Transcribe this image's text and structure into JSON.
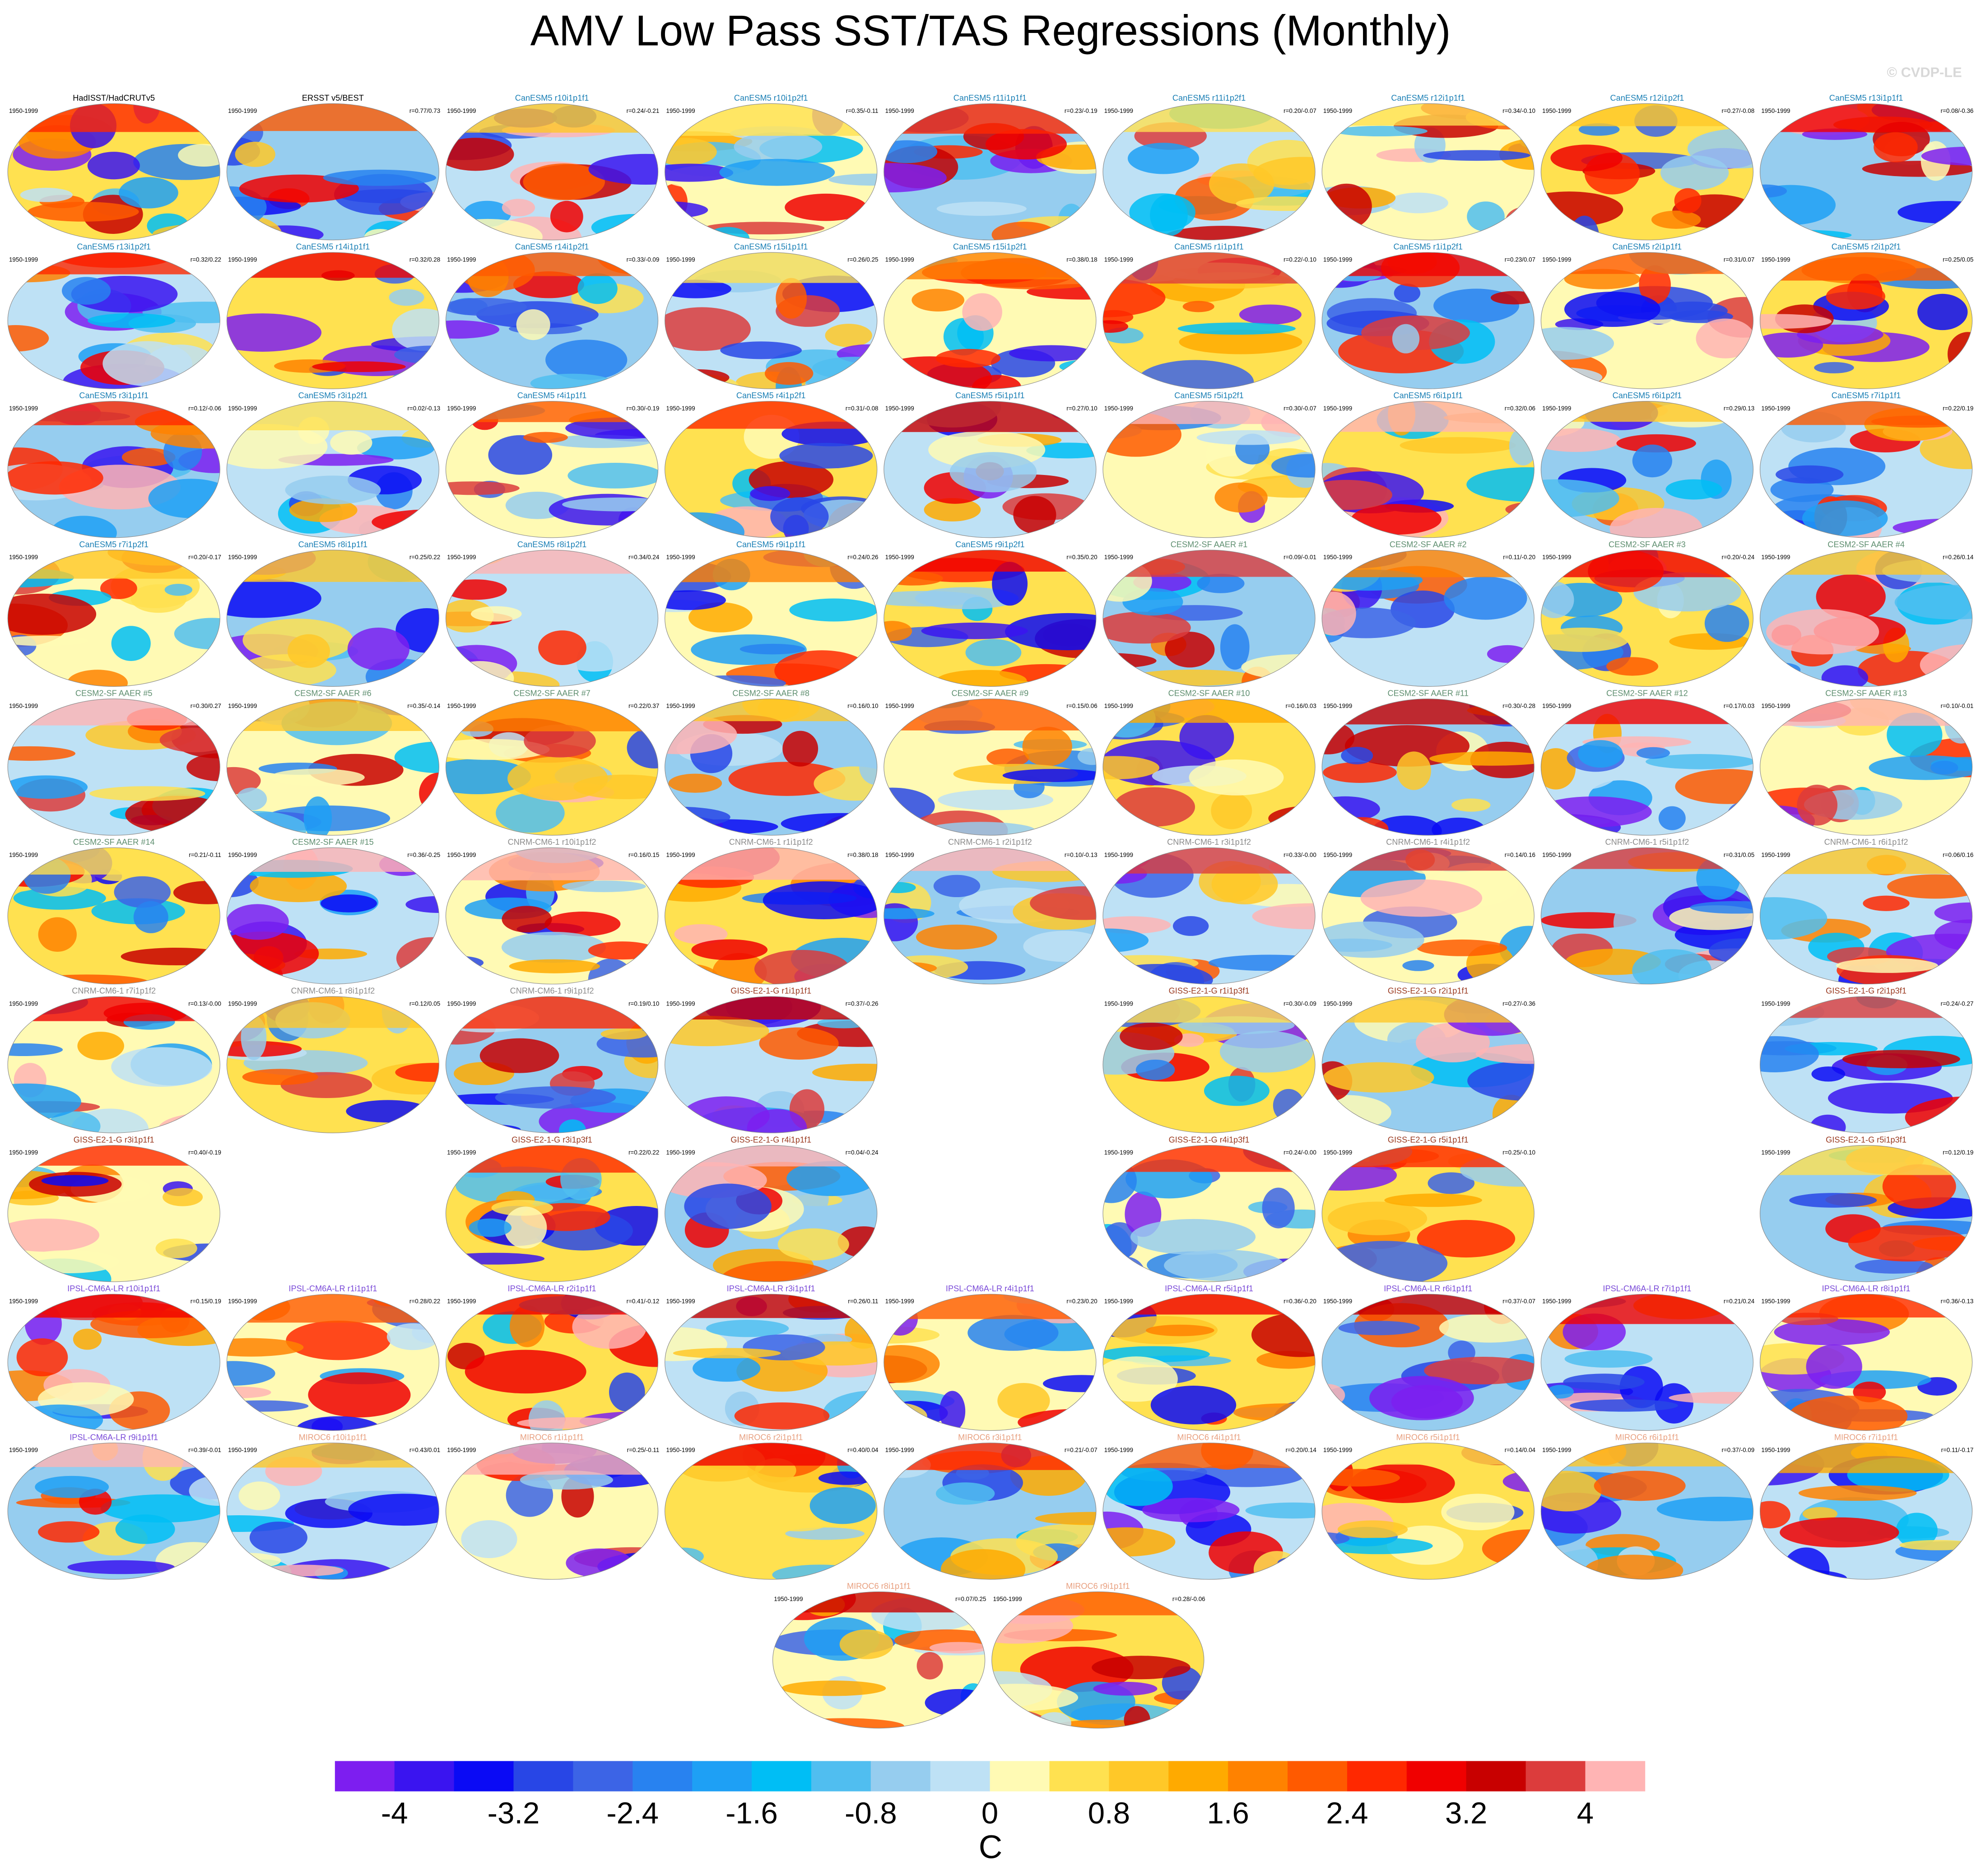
{
  "title": "AMV Low Pass SST/TAS Regressions (Monthly)",
  "credit": "© CVDP-LE",
  "panels": [
    [
      {
        "title": "HadISST/HadCRUTv5",
        "period": "1950-1999",
        "color": "#000000"
      },
      {
        "title": "ERSST v5/BEST",
        "period": "1950-1999",
        "r": "r=0.77/0.73",
        "color": "#000000"
      },
      {
        "title": "CanESM5 r10i1p1f1",
        "period": "1950-1999",
        "r": "r=0.24/-0.21",
        "color": "#1a7fb5"
      },
      {
        "title": "CanESM5 r10i1p2f1",
        "period": "1950-1999",
        "r": "r=0.35/-0.11",
        "color": "#1a7fb5"
      },
      {
        "title": "CanESM5 r11i1p1f1",
        "period": "1950-1999",
        "r": "r=0.23/-0.19",
        "color": "#1a7fb5"
      },
      {
        "title": "CanESM5 r11i1p2f1",
        "period": "1950-1999",
        "r": "r=0.20/-0.07",
        "color": "#1a7fb5"
      },
      {
        "title": "CanESM5 r12i1p1f1",
        "period": "1950-1999",
        "r": "r=0.34/-0.10",
        "color": "#1a7fb5"
      },
      {
        "title": "CanESM5 r12i1p2f1",
        "period": "1950-1999",
        "r": "r=0.27/-0.08",
        "color": "#1a7fb5"
      },
      {
        "title": "CanESM5 r13i1p1f1",
        "period": "1950-1999",
        "r": "r=0.08/-0.36",
        "color": "#1a7fb5"
      }
    ],
    [
      {
        "title": "CanESM5 r13i1p2f1",
        "period": "1950-1999",
        "r": "r=0.32/0.22",
        "color": "#1a7fb5"
      },
      {
        "title": "CanESM5 r14i1p1f1",
        "period": "1950-1999",
        "r": "r=0.32/0.28",
        "color": "#1a7fb5"
      },
      {
        "title": "CanESM5 r14i1p2f1",
        "period": "1950-1999",
        "r": "r=0.33/-0.09",
        "color": "#1a7fb5"
      },
      {
        "title": "CanESM5 r15i1p1f1",
        "period": "1950-1999",
        "r": "r=0.26/0.25",
        "color": "#1a7fb5"
      },
      {
        "title": "CanESM5 r15i1p2f1",
        "period": "1950-1999",
        "r": "r=0.38/0.18",
        "color": "#1a7fb5"
      },
      {
        "title": "CanESM5 r1i1p1f1",
        "period": "1950-1999",
        "r": "r=0.22/-0.10",
        "color": "#1a7fb5"
      },
      {
        "title": "CanESM5 r1i1p2f1",
        "period": "1950-1999",
        "r": "r=0.23/0.07",
        "color": "#1a7fb5"
      },
      {
        "title": "CanESM5 r2i1p1f1",
        "period": "1950-1999",
        "r": "r=0.31/0.07",
        "color": "#1a7fb5"
      },
      {
        "title": "CanESM5 r2i1p2f1",
        "period": "1950-1999",
        "r": "r=0.25/0.05",
        "color": "#1a7fb5"
      }
    ],
    [
      {
        "title": "CanESM5 r3i1p1f1",
        "period": "1950-1999",
        "r": "r=0.12/-0.06",
        "color": "#1a7fb5"
      },
      {
        "title": "CanESM5 r3i1p2f1",
        "period": "1950-1999",
        "r": "r=0.02/-0.13",
        "color": "#1a7fb5"
      },
      {
        "title": "CanESM5 r4i1p1f1",
        "period": "1950-1999",
        "r": "r=0.30/-0.19",
        "color": "#1a7fb5"
      },
      {
        "title": "CanESM5 r4i1p2f1",
        "period": "1950-1999",
        "r": "r=0.31/-0.08",
        "color": "#1a7fb5"
      },
      {
        "title": "CanESM5 r5i1p1f1",
        "period": "1950-1999",
        "r": "r=0.27/0.10",
        "color": "#1a7fb5"
      },
      {
        "title": "CanESM5 r5i1p2f1",
        "period": "1950-1999",
        "r": "r=0.30/-0.07",
        "color": "#1a7fb5"
      },
      {
        "title": "CanESM5 r6i1p1f1",
        "period": "1950-1999",
        "r": "r=0.32/0.06",
        "color": "#1a7fb5"
      },
      {
        "title": "CanESM5 r6i1p2f1",
        "period": "1950-1999",
        "r": "r=0.29/0.13",
        "color": "#1a7fb5"
      },
      {
        "title": "CanESM5 r7i1p1f1",
        "period": "1950-1999",
        "r": "r=0.22/0.19",
        "color": "#1a7fb5"
      }
    ],
    [
      {
        "title": "CanESM5 r7i1p2f1",
        "period": "1950-1999",
        "r": "r=0.20/-0.17",
        "color": "#1a7fb5"
      },
      {
        "title": "CanESM5 r8i1p1f1",
        "period": "1950-1999",
        "r": "r=0.25/0.22",
        "color": "#1a7fb5"
      },
      {
        "title": "CanESM5 r8i1p2f1",
        "period": "1950-1999",
        "r": "r=0.34/0.24",
        "color": "#1a7fb5"
      },
      {
        "title": "CanESM5 r9i1p1f1",
        "period": "1950-1999",
        "r": "r=0.24/0.26",
        "color": "#1a7fb5"
      },
      {
        "title": "CanESM5 r9i1p2f1",
        "period": "1950-1999",
        "r": "r=0.35/0.20",
        "color": "#1a7fb5"
      },
      {
        "title": "CESM2-SF AAER #1",
        "period": "1950-1999",
        "r": "r=0.09/-0.01",
        "color": "#5f8f70"
      },
      {
        "title": "CESM2-SF AAER #2",
        "period": "1950-1999",
        "r": "r=0.11/-0.20",
        "color": "#5f8f70"
      },
      {
        "title": "CESM2-SF AAER #3",
        "period": "1950-1999",
        "r": "r=0.20/-0.24",
        "color": "#5f8f70"
      },
      {
        "title": "CESM2-SF AAER #4",
        "period": "1950-1999",
        "r": "r=0.26/0.14",
        "color": "#5f8f70"
      }
    ],
    [
      {
        "title": "CESM2-SF AAER #5",
        "period": "1950-1999",
        "r": "r=0.30/0.27",
        "color": "#5f8f70"
      },
      {
        "title": "CESM2-SF AAER #6",
        "period": "1950-1999",
        "r": "r=0.35/-0.14",
        "color": "#5f8f70"
      },
      {
        "title": "CESM2-SF AAER #7",
        "period": "1950-1999",
        "r": "r=0.22/0.37",
        "color": "#5f8f70"
      },
      {
        "title": "CESM2-SF AAER #8",
        "period": "1950-1999",
        "r": "r=0.16/0.10",
        "color": "#5f8f70"
      },
      {
        "title": "CESM2-SF AAER #9",
        "period": "1950-1999",
        "r": "r=0.15/0.06",
        "color": "#5f8f70"
      },
      {
        "title": "CESM2-SF AAER #10",
        "period": "1950-1999",
        "r": "r=0.16/0.03",
        "color": "#5f8f70"
      },
      {
        "title": "CESM2-SF AAER #11",
        "period": "1950-1999",
        "r": "r=0.30/-0.28",
        "color": "#5f8f70"
      },
      {
        "title": "CESM2-SF AAER #12",
        "period": "1950-1999",
        "r": "r=0.17/0.03",
        "color": "#5f8f70"
      },
      {
        "title": "CESM2-SF AAER #13",
        "period": "1950-1999",
        "r": "r=0.10/-0.01",
        "color": "#5f8f70"
      }
    ],
    [
      {
        "title": "CESM2-SF AAER #14",
        "period": "1950-1999",
        "r": "r=0.21/-0.11",
        "color": "#5f8f70"
      },
      {
        "title": "CESM2-SF AAER #15",
        "period": "1950-1999",
        "r": "r=0.36/-0.25",
        "color": "#5f8f70"
      },
      {
        "title": "CNRM-CM6-1 r10i1p1f2",
        "period": "1950-1999",
        "r": "r=0.16/0.15",
        "color": "#8c8c8c"
      },
      {
        "title": "CNRM-CM6-1 r1i1p1f2",
        "period": "1950-1999",
        "r": "r=0.38/0.18",
        "color": "#8c8c8c"
      },
      {
        "title": "CNRM-CM6-1 r2i1p1f2",
        "period": "1950-1999",
        "r": "r=0.10/-0.13",
        "color": "#8c8c8c"
      },
      {
        "title": "CNRM-CM6-1 r3i1p1f2",
        "period": "1950-1999",
        "r": "r=0.33/-0.00",
        "color": "#8c8c8c"
      },
      {
        "title": "CNRM-CM6-1 r4i1p1f2",
        "period": "1950-1999",
        "r": "r=0.14/0.16",
        "color": "#8c8c8c"
      },
      {
        "title": "CNRM-CM6-1 r5i1p1f2",
        "period": "1950-1999",
        "r": "r=0.31/0.05",
        "color": "#8c8c8c"
      },
      {
        "title": "CNRM-CM6-1 r6i1p1f2",
        "period": "1950-1999",
        "r": "r=0.06/0.16",
        "color": "#8c8c8c"
      }
    ],
    [
      {
        "title": "CNRM-CM6-1 r7i1p1f2",
        "period": "1950-1999",
        "r": "r=0.13/-0.00",
        "color": "#8c8c8c"
      },
      {
        "title": "CNRM-CM6-1 r8i1p1f2",
        "period": "1950-1999",
        "r": "r=0.12/0.05",
        "color": "#8c8c8c"
      },
      {
        "title": "CNRM-CM6-1 r9i1p1f2",
        "period": "1950-1999",
        "r": "r=0.19/0.10",
        "color": "#8c8c8c"
      },
      {
        "title": "GISS-E2-1-G r1i1p1f1",
        "period": "1950-1999",
        "r": "r=0.37/-0.26",
        "color": "#9a3a20"
      },
      null,
      {
        "title": "GISS-E2-1-G r1i1p3f1",
        "period": "1950-1999",
        "r": "r=0.30/-0.09",
        "color": "#9a3a20"
      },
      {
        "title": "GISS-E2-1-G r2i1p1f1",
        "period": "1950-1999",
        "r": "r=0.27/-0.36",
        "color": "#9a3a20"
      },
      null,
      {
        "title": "GISS-E2-1-G r2i1p3f1",
        "period": "1950-1999",
        "r": "r=0.24/-0.27",
        "color": "#9a3a20"
      }
    ],
    [
      {
        "title": "GISS-E2-1-G r3i1p1f1",
        "period": "1950-1999",
        "r": "r=0.40/-0.19",
        "color": "#9a3a20"
      },
      null,
      {
        "title": "GISS-E2-1-G r3i1p3f1",
        "period": "1950-1999",
        "r": "r=0.22/0.22",
        "color": "#9a3a20"
      },
      {
        "title": "GISS-E2-1-G r4i1p1f1",
        "period": "1950-1999",
        "r": "r=0.04/-0.24",
        "color": "#9a3a20"
      },
      null,
      {
        "title": "GISS-E2-1-G r4i1p3f1",
        "period": "1950-1999",
        "r": "r=0.24/-0.00",
        "color": "#9a3a20"
      },
      {
        "title": "GISS-E2-1-G r5i1p1f1",
        "period": "1950-1999",
        "r": "r=0.25/-0.10",
        "color": "#9a3a20"
      },
      null,
      {
        "title": "GISS-E2-1-G r5i1p3f1",
        "period": "1950-1999",
        "r": "r=0.12/0.19",
        "color": "#9a3a20"
      }
    ],
    [
      {
        "title": "IPSL-CM6A-LR r10i1p1f1",
        "period": "1950-1999",
        "r": "r=0.15/0.19",
        "color": "#7a4ad8"
      },
      {
        "title": "IPSL-CM6A-LR r1i1p1f1",
        "period": "1950-1999",
        "r": "r=0.28/0.22",
        "color": "#7a4ad8"
      },
      {
        "title": "IPSL-CM6A-LR r2i1p1f1",
        "period": "1950-1999",
        "r": "r=0.41/-0.12",
        "color": "#7a4ad8"
      },
      {
        "title": "IPSL-CM6A-LR r3i1p1f1",
        "period": "1950-1999",
        "r": "r=0.26/0.11",
        "color": "#7a4ad8"
      },
      {
        "title": "IPSL-CM6A-LR r4i1p1f1",
        "period": "1950-1999",
        "r": "r=0.23/0.20",
        "color": "#7a4ad8"
      },
      {
        "title": "IPSL-CM6A-LR r5i1p1f1",
        "period": "1950-1999",
        "r": "r=0.36/-0.20",
        "color": "#7a4ad8"
      },
      {
        "title": "IPSL-CM6A-LR r6i1p1f1",
        "period": "1950-1999",
        "r": "r=0.37/-0.07",
        "color": "#7a4ad8"
      },
      {
        "title": "IPSL-CM6A-LR r7i1p1f1",
        "period": "1950-1999",
        "r": "r=0.21/0.24",
        "color": "#7a4ad8"
      },
      {
        "title": "IPSL-CM6A-LR r8i1p1f1",
        "period": "1950-1999",
        "r": "r=0.36/-0.13",
        "color": "#7a4ad8"
      }
    ],
    [
      {
        "title": "IPSL-CM6A-LR r9i1p1f1",
        "period": "1950-1999",
        "r": "r=0.39/-0.01",
        "color": "#7a4ad8"
      },
      {
        "title": "MIROC6 r10i1p1f1",
        "period": "1950-1999",
        "r": "r=0.43/0.01",
        "color": "#e8a080"
      },
      {
        "title": "MIROC6 r1i1p1f1",
        "period": "1950-1999",
        "r": "r=0.25/-0.11",
        "color": "#e8a080"
      },
      {
        "title": "MIROC6 r2i1p1f1",
        "period": "1950-1999",
        "r": "r=0.40/0.04",
        "color": "#e8a080"
      },
      {
        "title": "MIROC6 r3i1p1f1",
        "period": "1950-1999",
        "r": "r=0.21/-0.07",
        "color": "#e8a080"
      },
      {
        "title": "MIROC6 r4i1p1f1",
        "period": "1950-1999",
        "r": "r=0.20/0.14",
        "color": "#e8a080"
      },
      {
        "title": "MIROC6 r5i1p1f1",
        "period": "1950-1999",
        "r": "r=0.14/0.04",
        "color": "#e8a080"
      },
      {
        "title": "MIROC6 r6i1p1f1",
        "period": "1950-1999",
        "r": "r=0.37/-0.09",
        "color": "#e8a080"
      },
      {
        "title": "MIROC6 r7i1p1f1",
        "period": "1950-1999",
        "r": "r=0.11/-0.17",
        "color": "#e8a080"
      }
    ],
    [
      {
        "title": "MIROC6 r8i1p1f1",
        "period": "1950-1999",
        "r": "r=0.07/0.25",
        "color": "#e8a080"
      },
      {
        "title": "MIROC6 r9i1p1f1",
        "period": "1950-1999",
        "r": "r=0.28/-0.06",
        "color": "#e8a080"
      }
    ]
  ],
  "colorbar": {
    "colors": [
      "#7d1ef0",
      "#3a14f0",
      "#0a0af5",
      "#2846e6",
      "#3c64e6",
      "#2882f0",
      "#1ea0f5",
      "#00bef5",
      "#50bef0",
      "#96cdef",
      "#bee1f5",
      "#fffab4",
      "#ffe150",
      "#ffc828",
      "#ffaa00",
      "#ff8200",
      "#ff5a00",
      "#ff2800",
      "#f00000",
      "#c80000",
      "#dc3c3c",
      "#ffb4b4"
    ],
    "lim": [
      -4.4,
      4.4
    ],
    "ticks": [
      -4,
      -3.2,
      -2.4,
      -1.6,
      -0.8,
      0,
      0.8,
      1.6,
      2.4,
      3.2,
      4
    ],
    "units": "C"
  }
}
